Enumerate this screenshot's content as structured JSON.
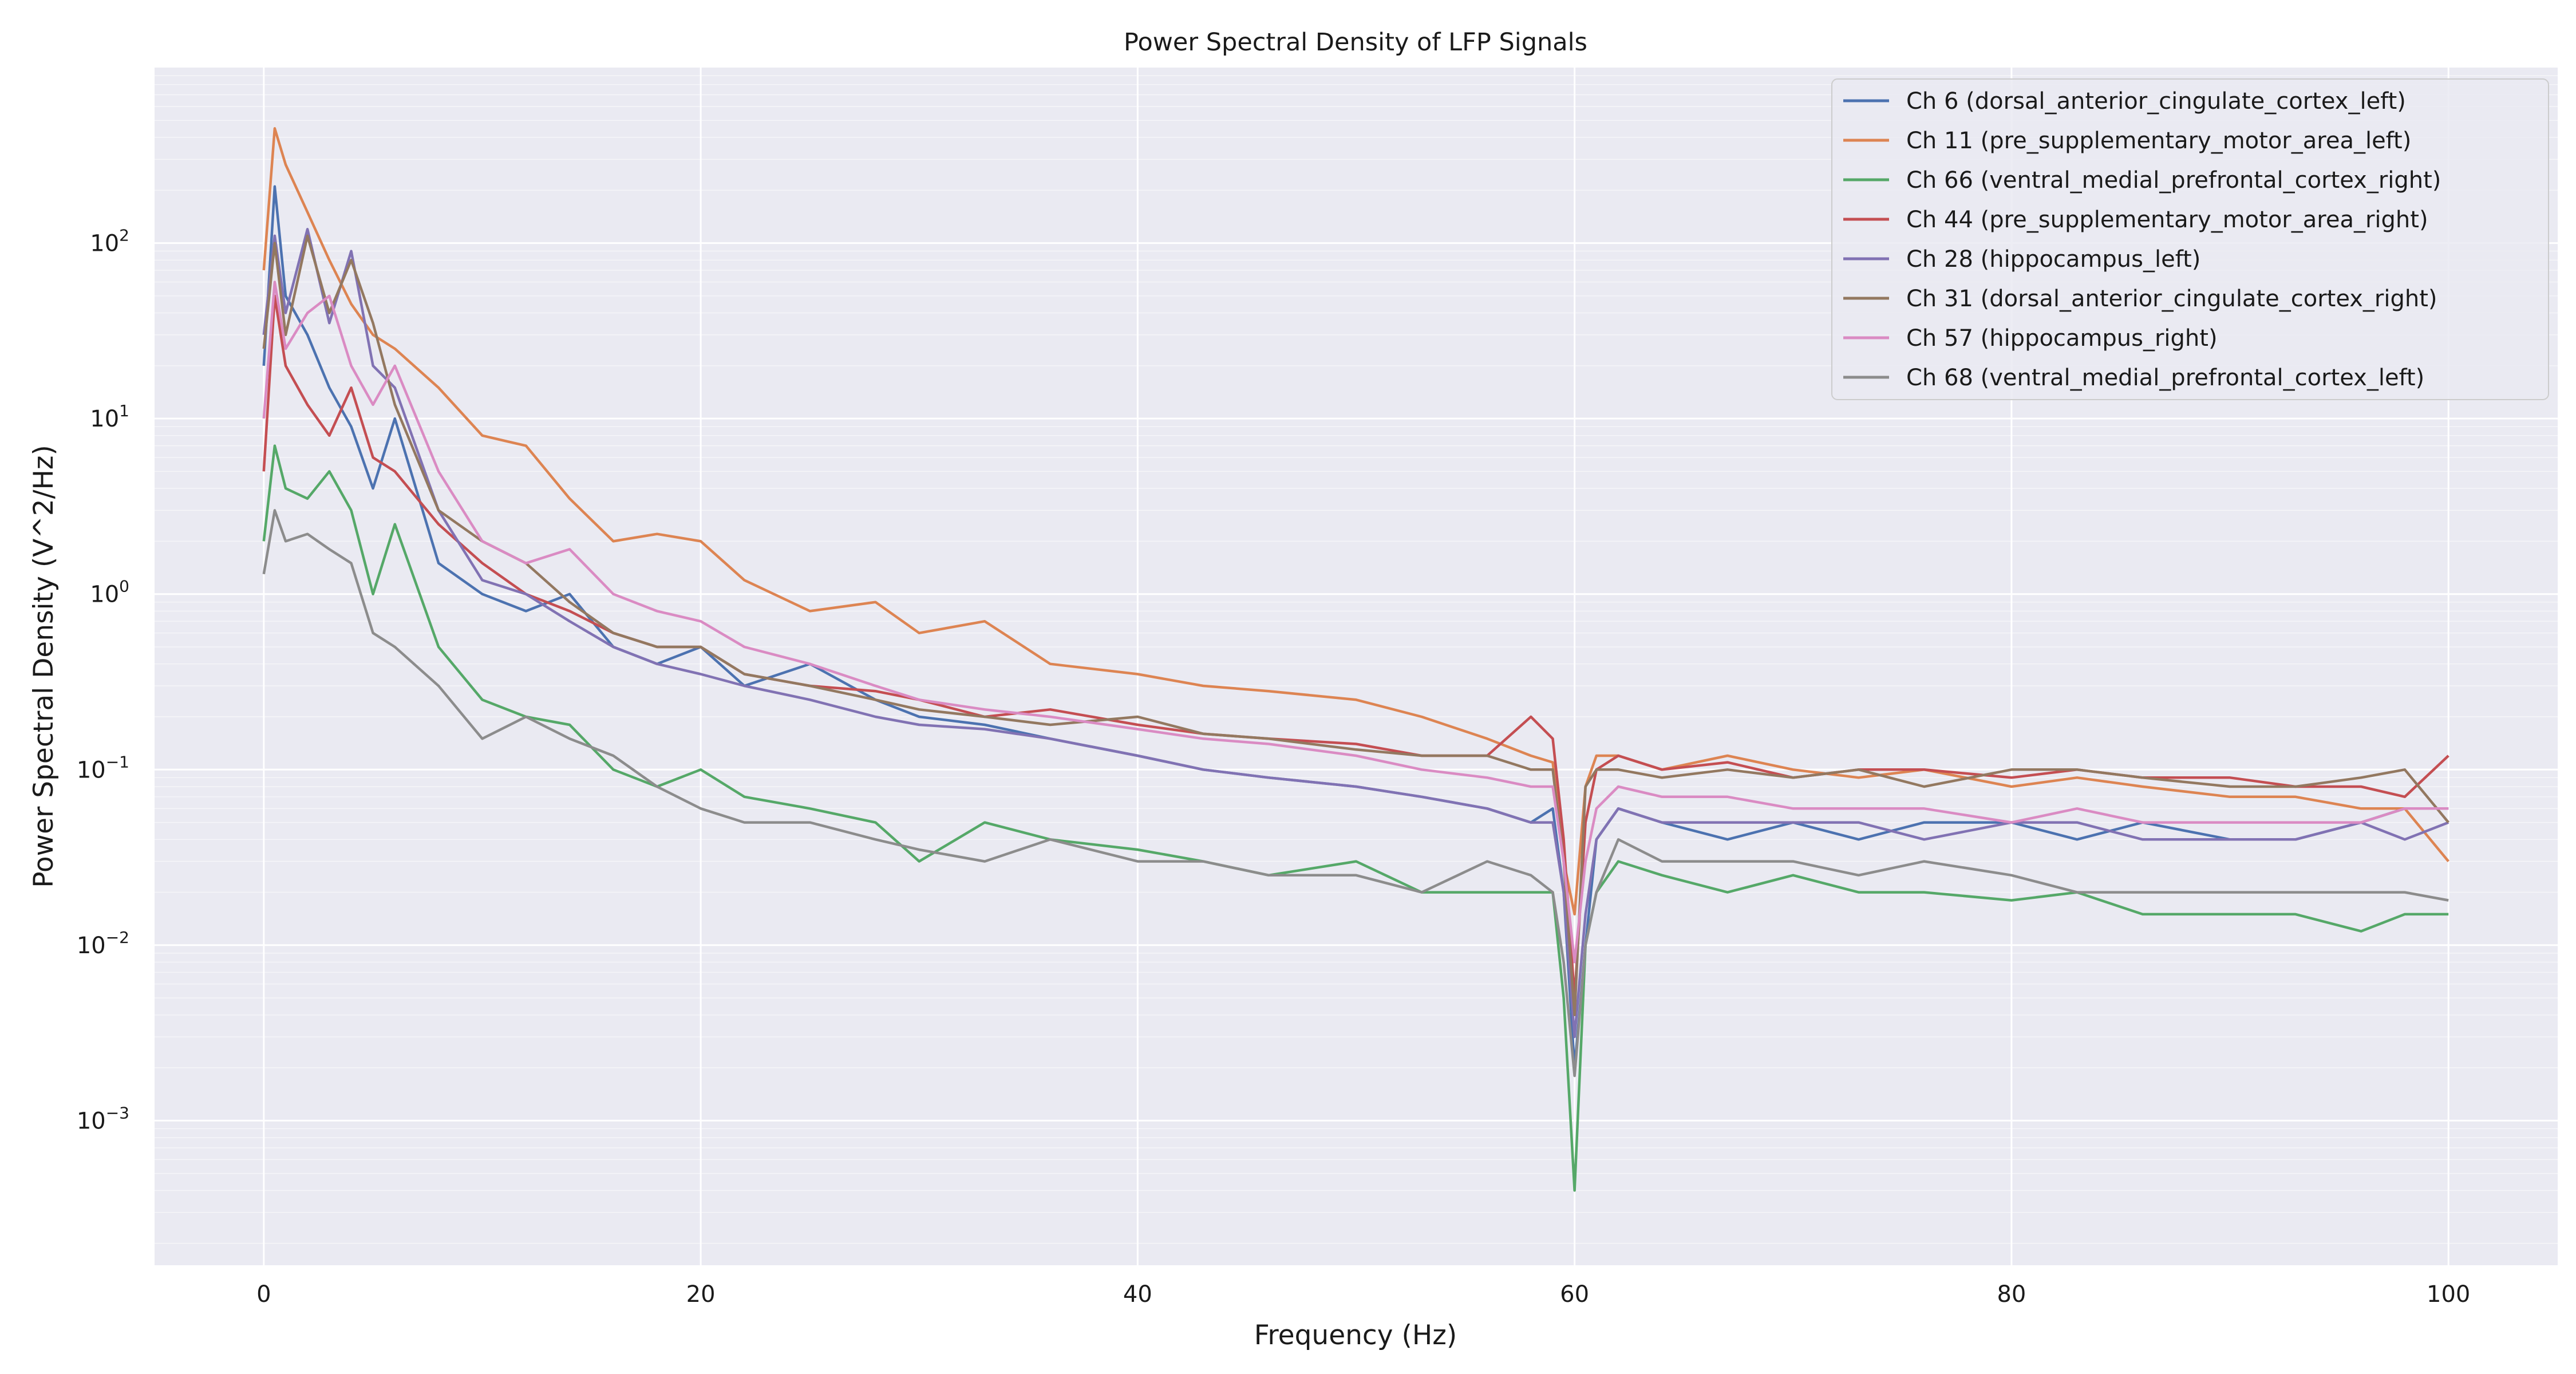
{
  "chart_data": {
    "type": "line",
    "title": "Power Spectral Density of LFP Signals",
    "xlabel": "Frequency (Hz)",
    "ylabel": "Power Spectral Density (V^2/Hz)",
    "x_scale": "linear",
    "y_scale": "log",
    "xlim": [
      -5,
      105
    ],
    "ylim": [
      0.00015,
      1000
    ],
    "x_ticks": [
      0,
      20,
      40,
      60,
      80,
      100
    ],
    "y_ticks": [
      {
        "value": 0.001,
        "base": "10",
        "exp": "−3"
      },
      {
        "value": 0.01,
        "base": "10",
        "exp": "−2"
      },
      {
        "value": 0.1,
        "base": "10",
        "exp": "−1"
      },
      {
        "value": 1,
        "base": "10",
        "exp": "0"
      },
      {
        "value": 10,
        "base": "10",
        "exp": "1"
      },
      {
        "value": 100,
        "base": "10",
        "exp": "2"
      }
    ],
    "grid": true,
    "legend_position": "top-right",
    "background_color": "#eaeaf2",
    "grid_color": "#ffffff",
    "x": [
      0,
      0.5,
      1,
      2,
      3,
      4,
      5,
      6,
      8,
      10,
      12,
      14,
      16,
      18,
      20,
      22,
      25,
      28,
      30,
      33,
      36,
      40,
      43,
      46,
      50,
      53,
      56,
      58,
      59,
      59.5,
      60,
      60.5,
      61,
      62,
      64,
      67,
      70,
      73,
      76,
      80,
      83,
      86,
      90,
      93,
      96,
      98,
      100
    ],
    "series": [
      {
        "name": "Ch 6 (dorsal_anterior_cingulate_cortex_left)",
        "color": "#4c72b0",
        "values": [
          20,
          210,
          50,
          30,
          15,
          9,
          4,
          10,
          1.5,
          1.0,
          0.8,
          1.0,
          0.5,
          0.4,
          0.5,
          0.3,
          0.4,
          0.25,
          0.2,
          0.18,
          0.15,
          0.12,
          0.1,
          0.09,
          0.08,
          0.07,
          0.06,
          0.05,
          0.06,
          0.02,
          0.002,
          0.01,
          0.04,
          0.06,
          0.05,
          0.04,
          0.05,
          0.04,
          0.05,
          0.05,
          0.04,
          0.05,
          0.04,
          0.04,
          0.05,
          0.06,
          0.06
        ]
      },
      {
        "name": "Ch 11 (pre_supplementary_motor_area_left)",
        "color": "#dd8452",
        "values": [
          70,
          450,
          280,
          150,
          80,
          45,
          30,
          25,
          15,
          8,
          7,
          3.5,
          2,
          2.2,
          2,
          1.2,
          0.8,
          0.9,
          0.6,
          0.7,
          0.4,
          0.35,
          0.3,
          0.28,
          0.25,
          0.2,
          0.15,
          0.12,
          0.11,
          0.03,
          0.015,
          0.08,
          0.12,
          0.12,
          0.1,
          0.12,
          0.1,
          0.09,
          0.1,
          0.08,
          0.09,
          0.08,
          0.07,
          0.07,
          0.06,
          0.06,
          0.03
        ]
      },
      {
        "name": "Ch 66 (ventral_medial_prefrontal_cortex_right)",
        "color": "#55a868",
        "values": [
          2,
          7,
          4,
          3.5,
          5,
          3,
          1,
          2.5,
          0.5,
          0.25,
          0.2,
          0.18,
          0.1,
          0.08,
          0.1,
          0.07,
          0.06,
          0.05,
          0.03,
          0.05,
          0.04,
          0.035,
          0.03,
          0.025,
          0.03,
          0.02,
          0.02,
          0.02,
          0.02,
          0.005,
          0.0004,
          0.01,
          0.02,
          0.03,
          0.025,
          0.02,
          0.025,
          0.02,
          0.02,
          0.018,
          0.02,
          0.015,
          0.015,
          0.015,
          0.012,
          0.015,
          0.015
        ]
      },
      {
        "name": "Ch 44 (pre_supplementary_motor_area_right)",
        "color": "#c44e52",
        "values": [
          5,
          50,
          20,
          12,
          8,
          15,
          6,
          5,
          2.5,
          1.5,
          1,
          0.8,
          0.6,
          0.5,
          0.5,
          0.35,
          0.3,
          0.28,
          0.25,
          0.2,
          0.22,
          0.18,
          0.16,
          0.15,
          0.14,
          0.12,
          0.12,
          0.2,
          0.15,
          0.04,
          0.005,
          0.05,
          0.1,
          0.12,
          0.1,
          0.11,
          0.09,
          0.1,
          0.1,
          0.09,
          0.1,
          0.09,
          0.09,
          0.08,
          0.08,
          0.07,
          0.12
        ]
      },
      {
        "name": "Ch 28 (hippocampus_left)",
        "color": "#8172b3",
        "values": [
          30,
          110,
          40,
          120,
          35,
          90,
          20,
          15,
          3,
          1.2,
          1.0,
          0.7,
          0.5,
          0.4,
          0.35,
          0.3,
          0.25,
          0.2,
          0.18,
          0.17,
          0.15,
          0.12,
          0.1,
          0.09,
          0.08,
          0.07,
          0.06,
          0.05,
          0.05,
          0.02,
          0.003,
          0.015,
          0.04,
          0.06,
          0.05,
          0.05,
          0.05,
          0.05,
          0.04,
          0.05,
          0.05,
          0.04,
          0.04,
          0.04,
          0.05,
          0.04,
          0.05
        ]
      },
      {
        "name": "Ch 31 (dorsal_anterior_cingulate_cortex_right)",
        "color": "#937860",
        "values": [
          25,
          100,
          30,
          110,
          40,
          80,
          35,
          12,
          3,
          2,
          1.5,
          0.9,
          0.6,
          0.5,
          0.5,
          0.35,
          0.3,
          0.25,
          0.22,
          0.2,
          0.18,
          0.2,
          0.16,
          0.15,
          0.13,
          0.12,
          0.12,
          0.1,
          0.1,
          0.03,
          0.004,
          0.08,
          0.1,
          0.1,
          0.09,
          0.1,
          0.09,
          0.1,
          0.08,
          0.1,
          0.1,
          0.09,
          0.08,
          0.08,
          0.09,
          0.1,
          0.05
        ]
      },
      {
        "name": "Ch 57 (hippocampus_right)",
        "color": "#da8bc3",
        "values": [
          10,
          60,
          25,
          40,
          50,
          20,
          12,
          20,
          5,
          2,
          1.5,
          1.8,
          1,
          0.8,
          0.7,
          0.5,
          0.4,
          0.3,
          0.25,
          0.22,
          0.2,
          0.17,
          0.15,
          0.14,
          0.12,
          0.1,
          0.09,
          0.08,
          0.08,
          0.03,
          0.008,
          0.03,
          0.06,
          0.08,
          0.07,
          0.07,
          0.06,
          0.06,
          0.06,
          0.05,
          0.06,
          0.05,
          0.05,
          0.05,
          0.05,
          0.06,
          0.06
        ]
      },
      {
        "name": "Ch 68 (ventral_medial_prefrontal_cortex_left)",
        "color": "#8c8c8c",
        "values": [
          1.3,
          3,
          2,
          2.2,
          1.8,
          1.5,
          0.6,
          0.5,
          0.3,
          0.15,
          0.2,
          0.15,
          0.12,
          0.08,
          0.06,
          0.05,
          0.05,
          0.04,
          0.035,
          0.03,
          0.04,
          0.03,
          0.03,
          0.025,
          0.025,
          0.02,
          0.03,
          0.025,
          0.02,
          0.008,
          0.0018,
          0.01,
          0.02,
          0.04,
          0.03,
          0.03,
          0.03,
          0.025,
          0.03,
          0.025,
          0.02,
          0.02,
          0.02,
          0.02,
          0.02,
          0.02,
          0.018
        ]
      }
    ]
  }
}
